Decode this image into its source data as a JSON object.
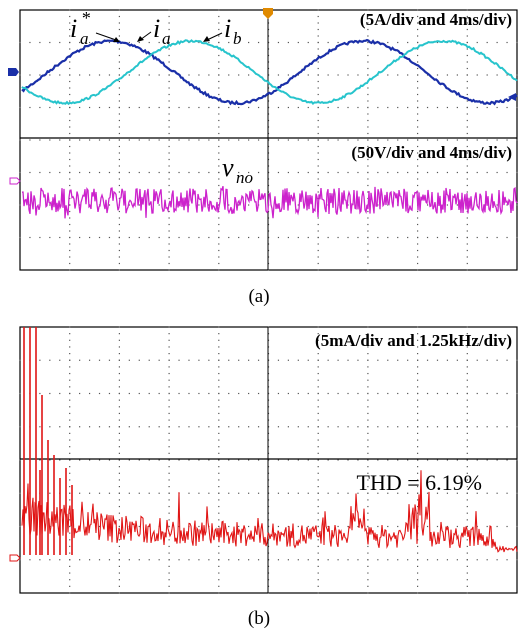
{
  "panel_a": {
    "current_scale": "(5A/div and 4ms/div)",
    "voltage_scale": "(50V/div and 4ms/div)",
    "caption": "(a)"
  },
  "panel_b": {
    "scale": "(5mA/div and 1.25kHz/div)",
    "thd_text": "THD = 6.19%",
    "caption": "(b)"
  },
  "colors": {
    "ia": "#1a2fa8",
    "ib": "#27c4cc",
    "vno": "#cc22cc",
    "spectrum": "#e01515",
    "grid": "#000000"
  },
  "chart_data": [
    {
      "type": "line",
      "panel": "a-top",
      "series": [
        {
          "name": "i_a",
          "values": [
            0.0,
            3.2,
            0.0,
            -3.2,
            0.0,
            3.2,
            0.0,
            -3.2
          ]
        },
        {
          "name": "i_b",
          "values": [
            -2.8,
            0.0,
            3.2,
            0.0,
            -3.2,
            0.0,
            3.2,
            0.0
          ]
        }
      ],
      "annotations": [
        "i_a*",
        "i_a",
        "i_b"
      ]
    },
    {
      "type": "line",
      "panel": "a-bottom",
      "series": [
        {
          "name": "v_no",
          "values": [
            0,
            0.5,
            -0.5,
            0.6,
            -0.4,
            0.5,
            -0.6,
            0.4
          ]
        }
      ],
      "annotations": [
        "v_no"
      ]
    },
    {
      "type": "bar",
      "panel": "b",
      "values": [
        1.0,
        0.95,
        0.85,
        0.4,
        0.6,
        0.3,
        0.2,
        0.15,
        0.12,
        0.1,
        0.08,
        0.08,
        0.07,
        0.06,
        0.05,
        0.05,
        0.05,
        0.04,
        0.05,
        0.04
      ]
    }
  ]
}
